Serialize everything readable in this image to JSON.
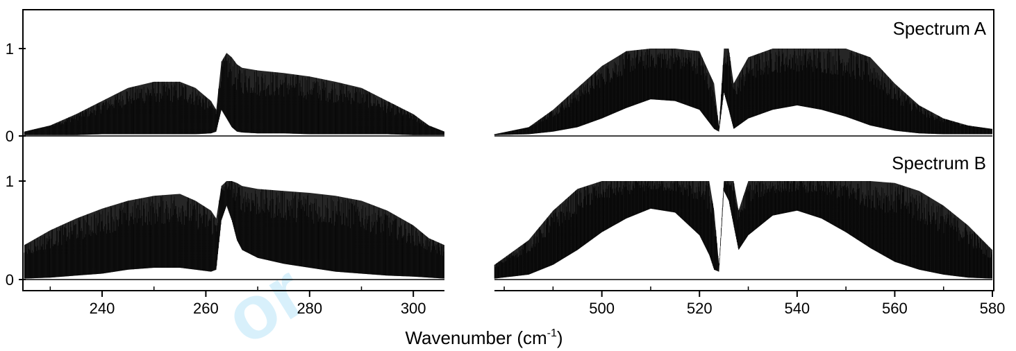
{
  "watermark": "or",
  "chart_data": {
    "type": "line",
    "xlabel": "Wavenumber (cm",
    "xlabel_superscript": "-1",
    "xlabel_suffix": ")",
    "grid": false,
    "x_segments": [
      {
        "xlim": [
          225,
          306
        ],
        "ticks": [
          240,
          260,
          280,
          300
        ],
        "tick_labels": [
          "240",
          "260",
          "280",
          "300"
        ]
      },
      {
        "xlim": [
          478,
          580
        ],
        "ticks": [
          500,
          520,
          540,
          560,
          580
        ],
        "tick_labels": [
          "500",
          "520",
          "540",
          "560",
          "580"
        ]
      }
    ],
    "panels": [
      {
        "label": "Spectrum A",
        "ylim": [
          0,
          1.2
        ],
        "yticks": [
          0,
          1
        ],
        "ytick_labels": [
          "0",
          "1"
        ],
        "color": "#000000",
        "segment1": {
          "x": [
            225,
            230,
            235,
            240,
            245,
            250,
            255,
            258,
            261,
            262,
            263,
            264,
            265,
            266,
            267,
            270,
            275,
            280,
            285,
            290,
            295,
            300,
            303,
            306
          ],
          "upper": [
            0.05,
            0.12,
            0.25,
            0.4,
            0.55,
            0.62,
            0.62,
            0.55,
            0.4,
            0.3,
            0.85,
            0.95,
            0.9,
            0.82,
            0.78,
            0.75,
            0.72,
            0.68,
            0.62,
            0.55,
            0.4,
            0.25,
            0.12,
            0.05
          ],
          "lower": [
            0.01,
            0.01,
            0.01,
            0.02,
            0.02,
            0.02,
            0.02,
            0.02,
            0.03,
            0.05,
            0.3,
            0.2,
            0.1,
            0.05,
            0.04,
            0.03,
            0.03,
            0.02,
            0.02,
            0.02,
            0.02,
            0.01,
            0.01,
            0.01
          ]
        },
        "segment2": {
          "x": [
            478,
            485,
            490,
            495,
            500,
            505,
            510,
            515,
            520,
            523,
            524,
            525,
            526,
            527,
            530,
            535,
            540,
            545,
            550,
            555,
            560,
            565,
            570,
            575,
            580
          ],
          "upper": [
            0.02,
            0.1,
            0.3,
            0.55,
            0.8,
            0.97,
            1.0,
            1.0,
            0.97,
            0.6,
            0.1,
            1.0,
            1.0,
            0.6,
            0.9,
            1.0,
            1.0,
            1.0,
            1.0,
            0.9,
            0.6,
            0.35,
            0.2,
            0.12,
            0.08
          ],
          "lower": [
            0.01,
            0.02,
            0.05,
            0.1,
            0.2,
            0.32,
            0.42,
            0.4,
            0.3,
            0.08,
            0.05,
            0.5,
            0.3,
            0.08,
            0.2,
            0.3,
            0.35,
            0.3,
            0.22,
            0.12,
            0.06,
            0.03,
            0.02,
            0.02,
            0.02
          ]
        }
      },
      {
        "label": "Spectrum B",
        "ylim": [
          0,
          1.1
        ],
        "yticks": [
          0,
          1
        ],
        "ytick_labels": [
          "0",
          "1"
        ],
        "color": "#000000",
        "segment1": {
          "x": [
            225,
            230,
            235,
            240,
            245,
            250,
            255,
            258,
            261,
            262,
            263,
            264,
            265,
            266,
            267,
            270,
            275,
            280,
            285,
            290,
            295,
            300,
            303,
            306
          ],
          "upper": [
            0.35,
            0.5,
            0.62,
            0.72,
            0.8,
            0.85,
            0.87,
            0.8,
            0.7,
            0.62,
            0.95,
            1.0,
            1.0,
            0.98,
            0.95,
            0.92,
            0.9,
            0.88,
            0.85,
            0.8,
            0.7,
            0.55,
            0.42,
            0.35
          ],
          "lower": [
            0.01,
            0.02,
            0.04,
            0.06,
            0.1,
            0.12,
            0.12,
            0.1,
            0.08,
            0.1,
            0.6,
            0.75,
            0.6,
            0.4,
            0.3,
            0.22,
            0.16,
            0.12,
            0.08,
            0.06,
            0.04,
            0.03,
            0.02,
            0.01
          ]
        },
        "segment2": {
          "x": [
            478,
            485,
            490,
            495,
            500,
            505,
            510,
            515,
            520,
            522,
            523,
            524,
            525,
            526,
            527,
            528,
            530,
            535,
            540,
            545,
            550,
            555,
            560,
            565,
            570,
            575,
            580
          ],
          "upper": [
            0.15,
            0.4,
            0.7,
            0.92,
            1.0,
            1.0,
            1.0,
            1.0,
            1.0,
            1.0,
            0.7,
            0.15,
            1.0,
            1.0,
            1.0,
            0.7,
            1.0,
            1.0,
            1.0,
            1.0,
            1.0,
            1.0,
            0.98,
            0.9,
            0.75,
            0.55,
            0.3
          ],
          "lower": [
            0.01,
            0.05,
            0.15,
            0.3,
            0.48,
            0.62,
            0.72,
            0.68,
            0.45,
            0.25,
            0.1,
            0.08,
            0.9,
            0.8,
            0.55,
            0.3,
            0.45,
            0.65,
            0.7,
            0.62,
            0.48,
            0.32,
            0.18,
            0.1,
            0.05,
            0.02,
            0.01
          ]
        }
      }
    ]
  }
}
